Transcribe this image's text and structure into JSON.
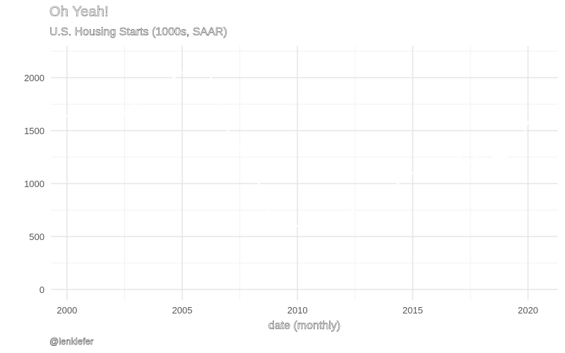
{
  "chart_data": {
    "type": "line",
    "title": "Oh Yeah!",
    "subtitle": "U.S. Housing Starts (1000s, SAAR)",
    "caption": "@lenkiefer",
    "xlabel": "date (monthly)",
    "ylabel": "",
    "x_ticks": [
      "2000",
      "2005",
      "2010",
      "2015",
      "2020"
    ],
    "y_ticks": [
      "0",
      "500",
      "1000",
      "1500",
      "2000"
    ],
    "xlim": [
      1999.3,
      2021.3
    ],
    "ylim": [
      -100,
      2300
    ],
    "grid": true,
    "legend": "none",
    "series": [
      {
        "color": "#ffffff",
        "points": [
          [
            2000.0,
            1636
          ],
          [
            2000.5,
            1600
          ],
          [
            2001.0,
            1600
          ],
          [
            2001.5,
            1620
          ],
          [
            2002.0,
            1700
          ],
          [
            2002.5,
            1660
          ],
          [
            2003.0,
            1760
          ],
          [
            2003.5,
            1850
          ],
          [
            2004.0,
            1900
          ],
          [
            2004.5,
            1980
          ],
          [
            2005.0,
            2050
          ],
          [
            2005.5,
            2060
          ],
          [
            2006.0,
            2200
          ],
          [
            2006.5,
            1800
          ],
          [
            2007.0,
            1480
          ],
          [
            2007.5,
            1350
          ],
          [
            2008.0,
            1080
          ],
          [
            2008.5,
            960
          ],
          [
            2009.0,
            550
          ],
          [
            2009.5,
            590
          ],
          [
            2010.0,
            600
          ],
          [
            2010.5,
            580
          ],
          [
            2011.0,
            560
          ],
          [
            2011.5,
            600
          ],
          [
            2012.0,
            700
          ],
          [
            2012.5,
            760
          ],
          [
            2013.0,
            900
          ],
          [
            2013.5,
            880
          ],
          [
            2014.0,
            950
          ],
          [
            2014.5,
            1020
          ],
          [
            2015.0,
            1100
          ],
          [
            2015.5,
            1150
          ],
          [
            2016.0,
            1150
          ],
          [
            2016.5,
            1200
          ],
          [
            2017.0,
            1250
          ],
          [
            2017.5,
            1200
          ],
          [
            2018.0,
            1320
          ],
          [
            2018.5,
            1250
          ],
          [
            2019.0,
            1250
          ],
          [
            2019.5,
            1300
          ],
          [
            2020.0,
            1580
          ]
        ]
      }
    ]
  }
}
